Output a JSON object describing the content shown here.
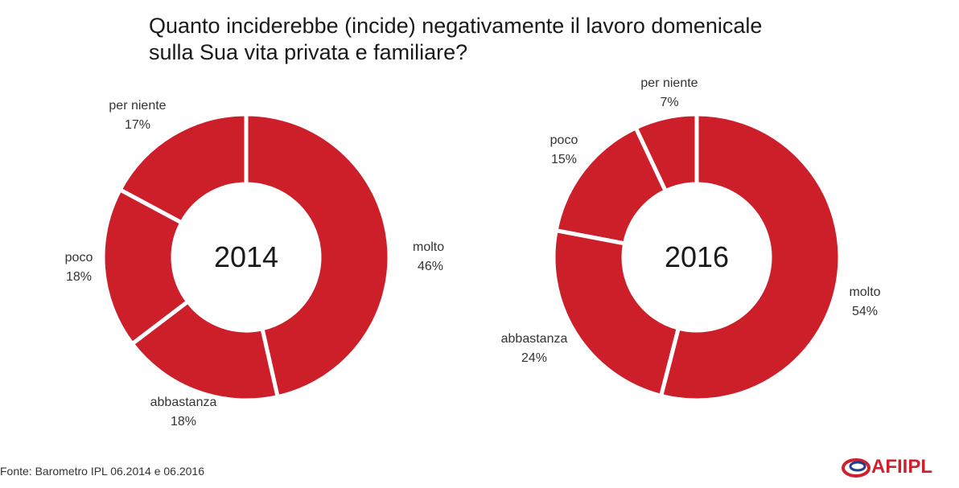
{
  "title_lines": [
    "Quanto inciderebbe (incide) negativamente il lavoro domenicale",
    "sulla Sua vita  privata e familiare?"
  ],
  "source": "Fonte: Barometro IPL 06.2014 e 06.2016",
  "logo": {
    "text": "AFIIPL",
    "color": "#d01f2d"
  },
  "colors": {
    "slice": "#cc1f2a",
    "separator": "#ffffff"
  },
  "chart_data": [
    {
      "type": "pie",
      "variant": "donut",
      "center_label": "2014",
      "categories": [
        "molto",
        "abbastanza",
        "poco",
        "per niente"
      ],
      "values": [
        46,
        18,
        18,
        17
      ],
      "value_labels": [
        "46%",
        "18%",
        "18%",
        "17%"
      ]
    },
    {
      "type": "pie",
      "variant": "donut",
      "center_label": "2016",
      "categories": [
        "molto",
        "abbastanza",
        "poco",
        "per niente"
      ],
      "values": [
        54,
        24,
        15,
        7
      ],
      "value_labels": [
        "54%",
        "24%",
        "15%",
        "7%"
      ]
    }
  ]
}
